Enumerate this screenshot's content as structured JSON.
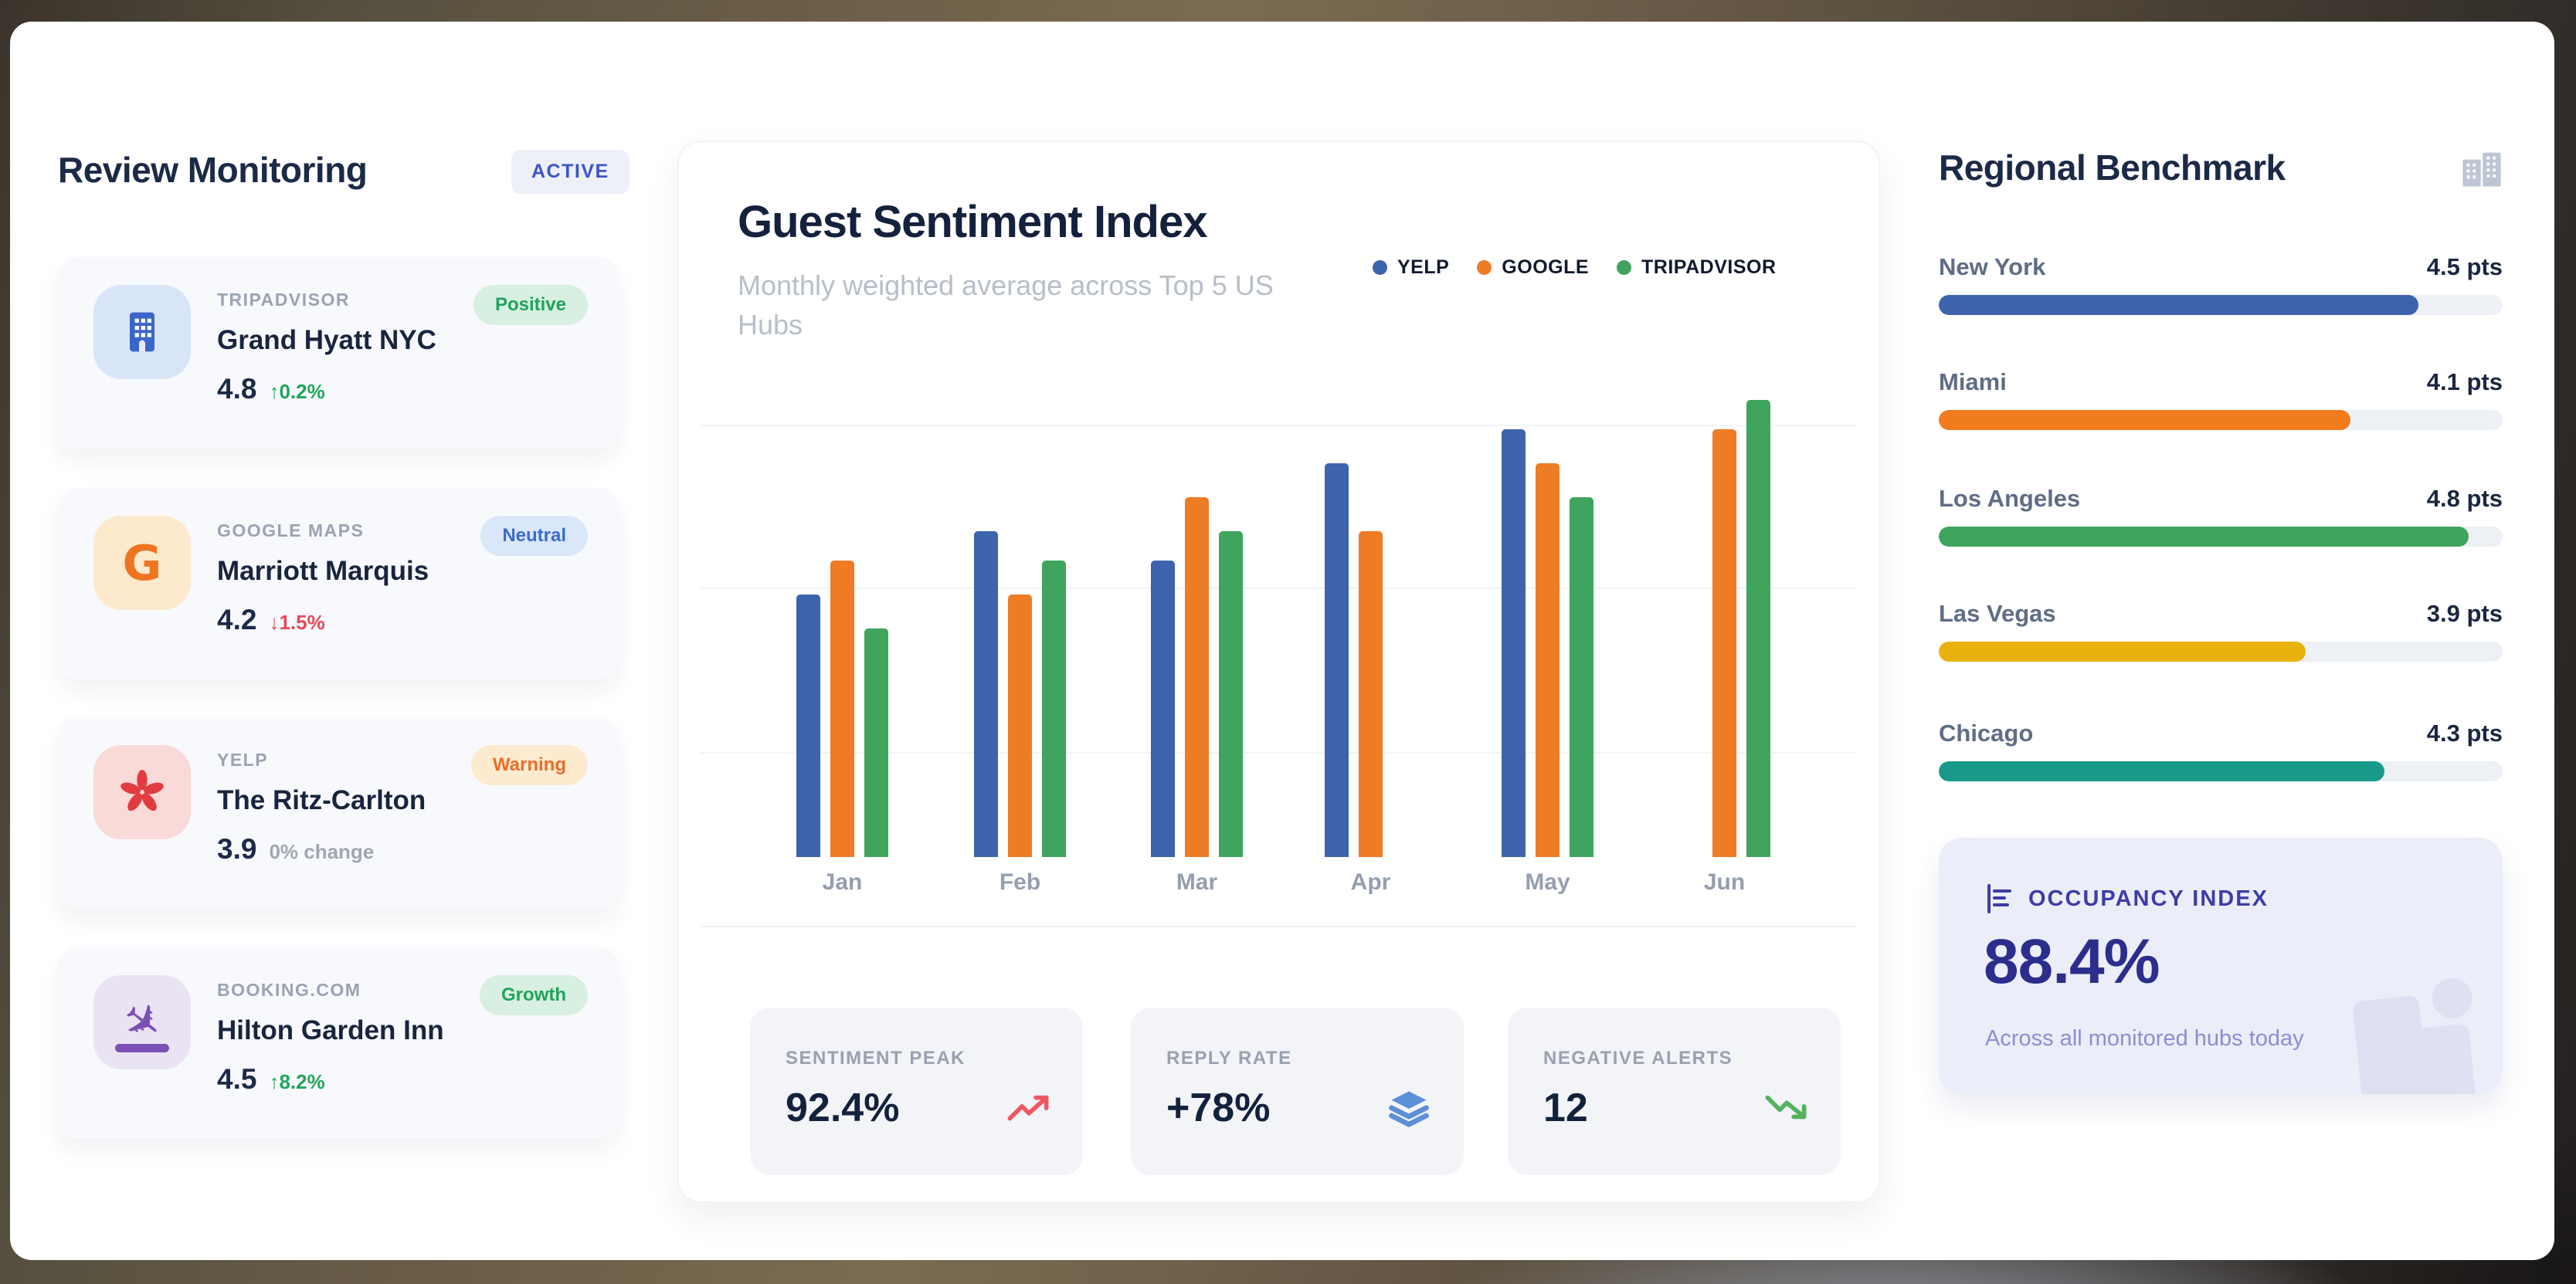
{
  "review_monitoring": {
    "title": "Review Monitoring",
    "status_badge": "ACTIVE",
    "cards": [
      {
        "source": "TRIPADVISOR",
        "hotel": "Grand Hyatt NYC",
        "rating": "4.8",
        "change_arrow": "↑",
        "change_text": "0.2%",
        "badge": "Positive"
      },
      {
        "source": "GOOGLE MAPS",
        "hotel": "Marriott Marquis",
        "rating": "4.2",
        "change_arrow": "↓",
        "change_text": "1.5%",
        "badge": "Neutral"
      },
      {
        "source": "YELP",
        "hotel": "The Ritz-Carlton",
        "rating": "3.9",
        "change_arrow": "",
        "change_text": "0% change",
        "badge": "Warning"
      },
      {
        "source": "BOOKING.COM",
        "hotel": "Hilton Garden Inn",
        "rating": "4.5",
        "change_arrow": "↑",
        "change_text": "8.2%",
        "badge": "Growth"
      }
    ]
  },
  "chart": {
    "title": "Guest Sentiment Index",
    "subtitle": "Monthly weighted average across Top 5 US Hubs"
  },
  "chart_data": {
    "type": "bar",
    "title": "Guest Sentiment Index",
    "subtitle": "Monthly weighted average across Top 5 US Hubs",
    "categories": [
      "Jan",
      "Feb",
      "Mar",
      "Apr",
      "May",
      "Jun"
    ],
    "series": [
      {
        "name": "YELP",
        "color": "#3c63ac",
        "values": [
          54,
          67,
          61,
          81,
          88,
          0
        ]
      },
      {
        "name": "GOOGLE",
        "color": "#ee7c25",
        "values": [
          61,
          54,
          74,
          67,
          81,
          88
        ]
      },
      {
        "name": "TRIPADVISOR",
        "color": "#3fa55c",
        "values": [
          47,
          61,
          67,
          0,
          74,
          94
        ]
      }
    ],
    "xlabel": "",
    "ylabel": "",
    "ylim": [
      0,
      100
    ],
    "grid": true,
    "legend_position": "top-right",
    "note": "y-axis has no tick labels; values estimated from bar heights on a 0-100 sentiment index; Apr TRIPADVISOR and Jun YELP bars absent (zero)"
  },
  "stats": [
    {
      "label": "SENTIMENT PEAK",
      "value": "92.4%",
      "icon": "trending-up-icon",
      "icon_color": "#ef5661"
    },
    {
      "label": "REPLY RATE",
      "value": "+78%",
      "icon": "layers-icon",
      "icon_color": "#5b8fd6"
    },
    {
      "label": "NEGATIVE ALERTS",
      "value": "12",
      "icon": "trending-down-icon",
      "icon_color": "#55b25e"
    }
  ],
  "regional_benchmark": {
    "title": "Regional Benchmark",
    "rows": [
      {
        "city": "New York",
        "pts_label": "4.5 pts",
        "pts": 4.5,
        "fill_pct": 85,
        "color": "#3c63ac"
      },
      {
        "city": "Miami",
        "pts_label": "4.1 pts",
        "pts": 4.1,
        "fill_pct": 73,
        "color": "#f07c1e"
      },
      {
        "city": "Los Angeles",
        "pts_label": "4.8 pts",
        "pts": 4.8,
        "fill_pct": 94,
        "color": "#3fa55c"
      },
      {
        "city": "Las Vegas",
        "pts_label": "3.9 pts",
        "pts": 3.9,
        "fill_pct": 65,
        "color": "#e9b10e"
      },
      {
        "city": "Chicago",
        "pts_label": "4.3 pts",
        "pts": 4.3,
        "fill_pct": 79,
        "color": "#18998a"
      }
    ],
    "occupancy": {
      "label": "OCCUPANCY INDEX",
      "value": "88.4%",
      "caption": "Across all monitored hubs today"
    }
  }
}
